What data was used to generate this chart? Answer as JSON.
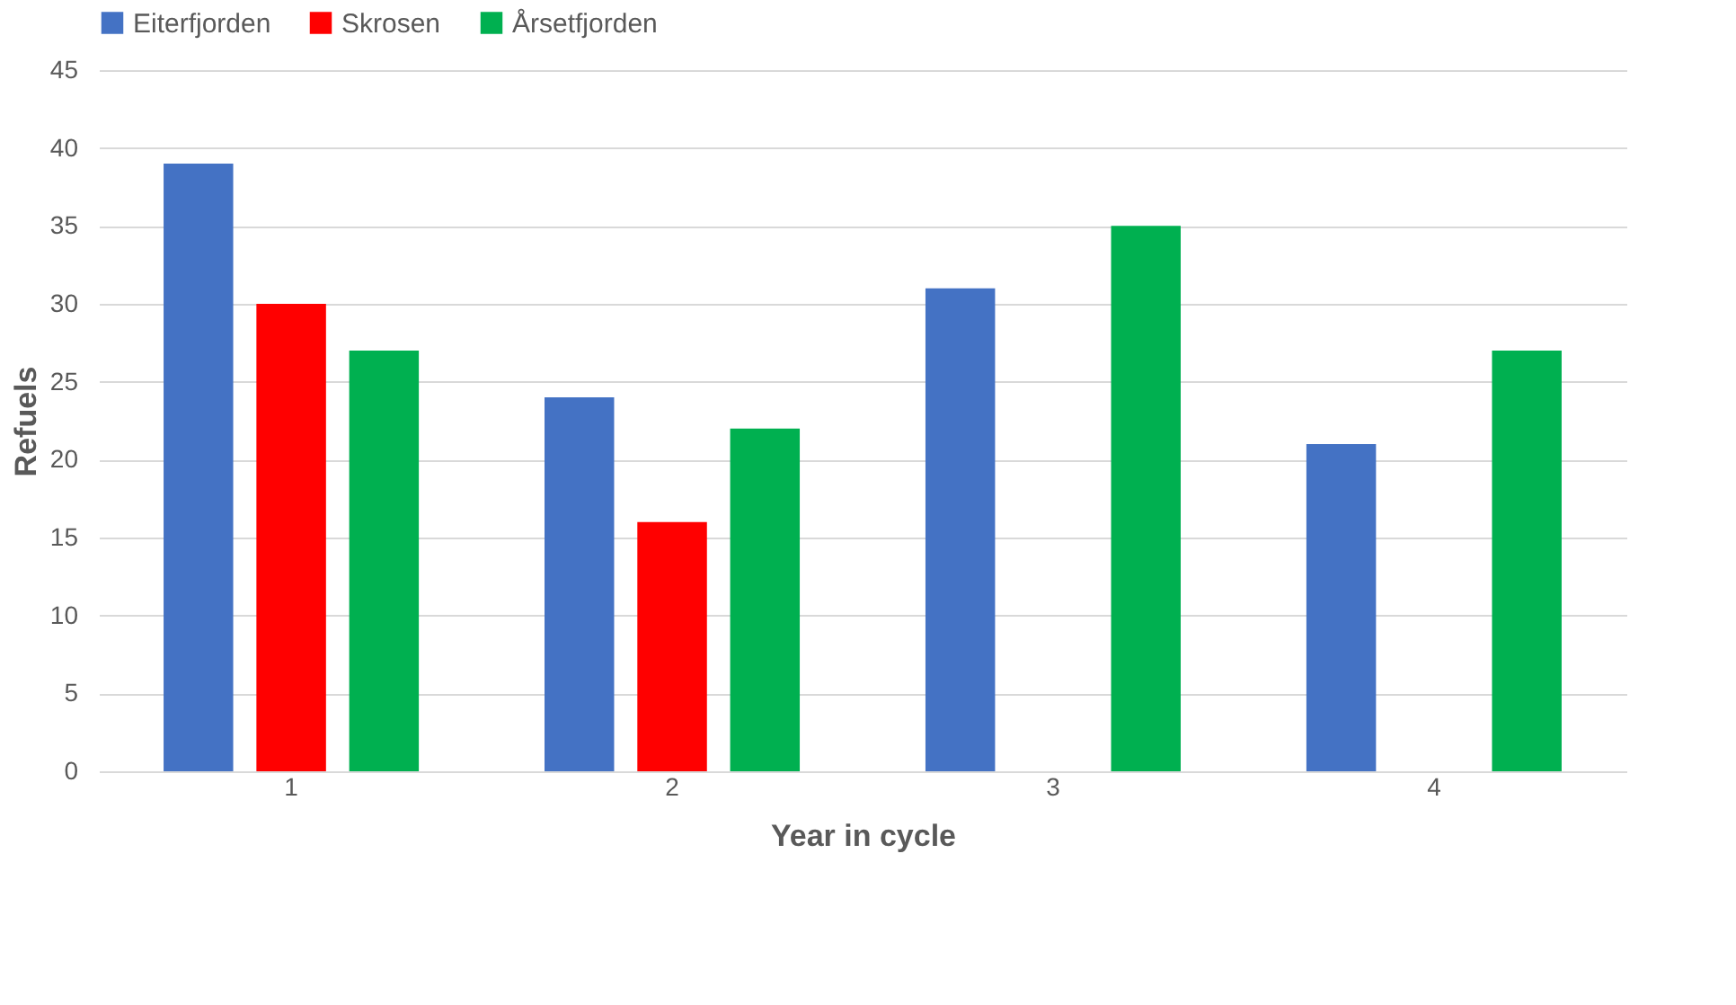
{
  "chart_data": {
    "type": "bar",
    "xlabel": "Year in cycle",
    "ylabel": "Refuels",
    "categories": [
      "1",
      "2",
      "3",
      "4"
    ],
    "series": [
      {
        "name": "Eiterfjorden",
        "color": "#4472c4",
        "values": [
          39,
          24,
          31,
          21
        ]
      },
      {
        "name": "Skrosen",
        "color": "#ff0000",
        "values": [
          30,
          16,
          null,
          null
        ]
      },
      {
        "name": "Årsetfjorden",
        "color": "#00b050",
        "values": [
          27,
          22,
          35,
          27
        ]
      }
    ],
    "ylim": [
      0,
      45
    ],
    "yticks": [
      0,
      5,
      10,
      15,
      20,
      25,
      30,
      35,
      40,
      45
    ],
    "grid": "y",
    "legend": "top"
  }
}
